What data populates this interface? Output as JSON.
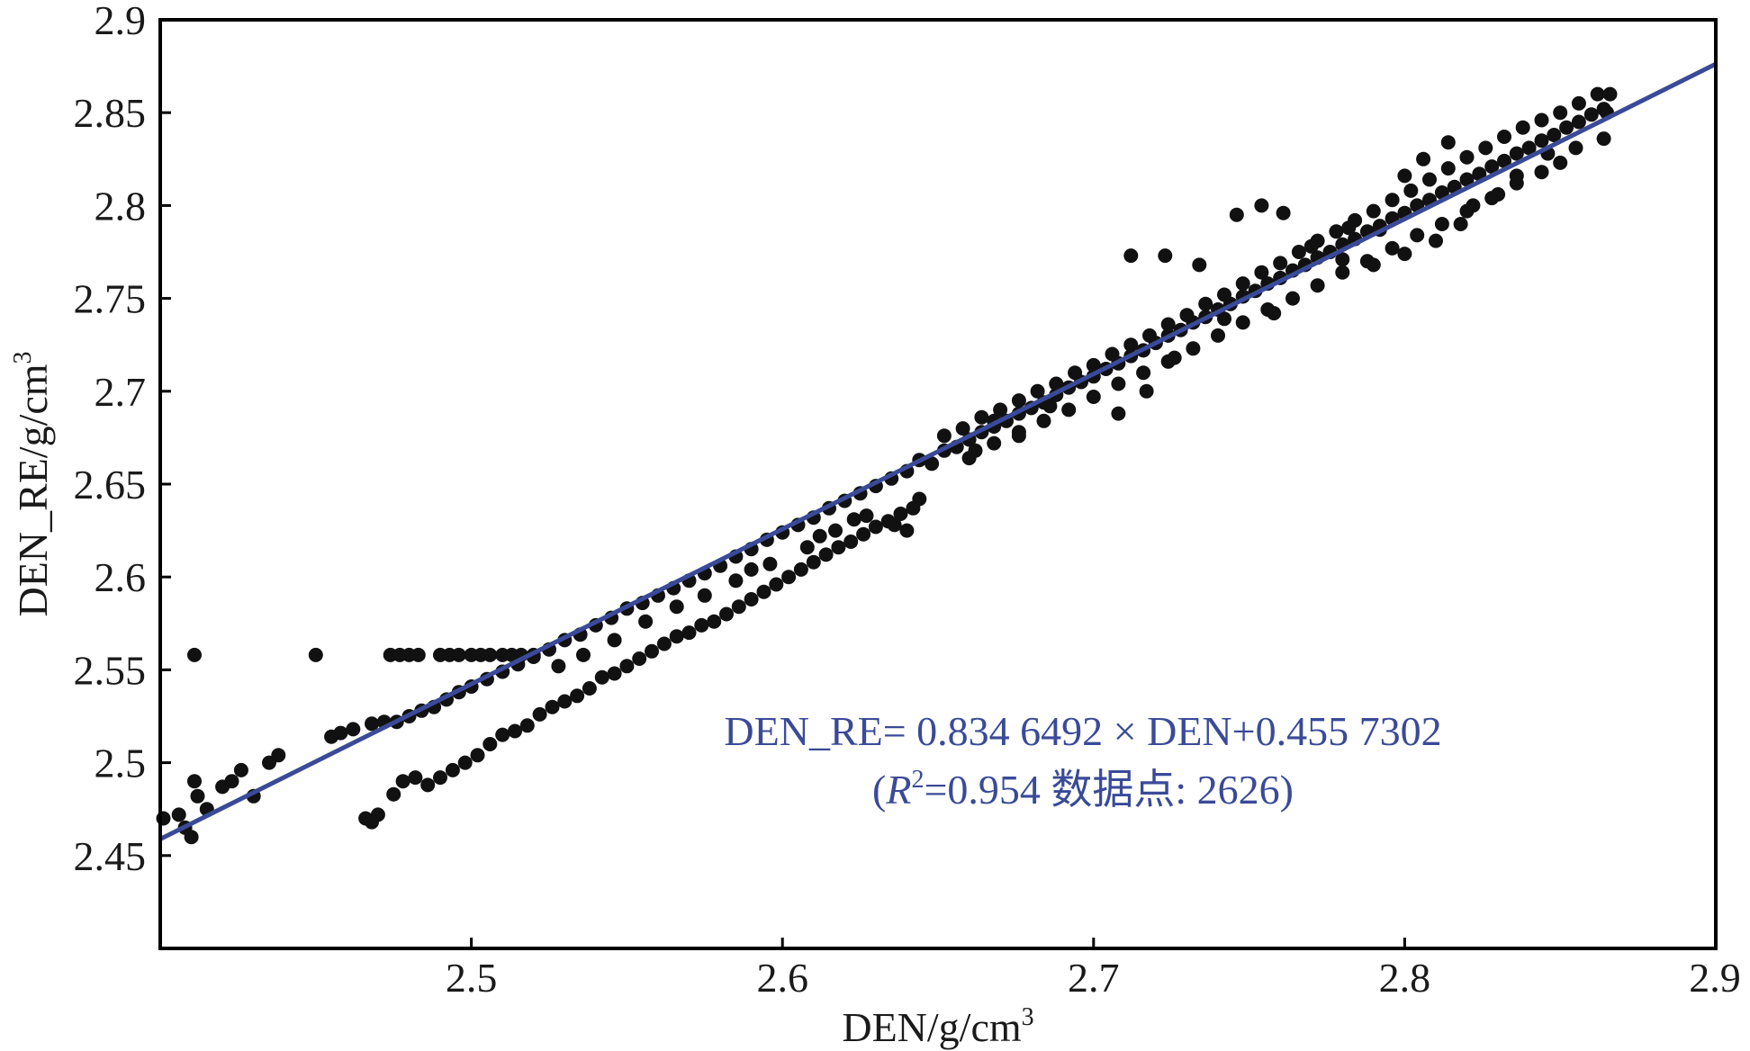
{
  "chart_data": {
    "type": "scatter",
    "xlabel": "DEN/g/cm",
    "xlabel_sup": "3",
    "ylabel": "DEN_RE/g/cm",
    "ylabel_sup": "3",
    "xlim": [
      2.4,
      2.9
    ],
    "ylim": [
      2.4,
      2.9
    ],
    "xticks": [
      2.5,
      2.6,
      2.7,
      2.8,
      2.9
    ],
    "xtick_labels": [
      "2.5",
      "2.6",
      "2.7",
      "2.8",
      "2.9"
    ],
    "yticks": [
      2.45,
      2.5,
      2.55,
      2.6,
      2.65,
      2.7,
      2.75,
      2.8,
      2.85,
      2.9
    ],
    "ytick_labels": [
      "2.45",
      "2.5",
      "2.55",
      "2.6",
      "2.65",
      "2.7",
      "2.75",
      "2.8",
      "2.85",
      "2.9"
    ],
    "grid": false,
    "marker_color": "#111111",
    "fit_line": {
      "slope": 0.8346492,
      "intercept": 0.4557302,
      "color": "#3a4a98"
    },
    "annotation": {
      "equation": "DEN_RE= 0.834 6492 × DEN+0.455 7302",
      "r_open": "(",
      "r_symbol": "R",
      "r_sup": "2",
      "r_rest": "=0.954 数据点: 2626)"
    },
    "series": [
      {
        "points": [
          [
            2.401,
            2.47
          ],
          [
            2.406,
            2.472
          ],
          [
            2.408,
            2.465
          ],
          [
            2.41,
            2.46
          ],
          [
            2.411,
            2.49
          ],
          [
            2.412,
            2.482
          ],
          [
            2.411,
            2.558
          ],
          [
            2.415,
            2.475
          ],
          [
            2.42,
            2.487
          ],
          [
            2.423,
            2.49
          ],
          [
            2.426,
            2.496
          ],
          [
            2.43,
            2.482
          ],
          [
            2.435,
            2.5
          ],
          [
            2.438,
            2.504
          ],
          [
            2.45,
            2.558
          ],
          [
            2.455,
            2.514
          ],
          [
            2.458,
            2.516
          ],
          [
            2.462,
            2.518
          ],
          [
            2.468,
            2.521
          ],
          [
            2.472,
            2.522
          ],
          [
            2.476,
            2.522
          ],
          [
            2.48,
            2.525
          ],
          [
            2.484,
            2.528
          ],
          [
            2.488,
            2.53
          ],
          [
            2.492,
            2.534
          ],
          [
            2.496,
            2.538
          ],
          [
            2.5,
            2.541
          ],
          [
            2.505,
            2.545
          ],
          [
            2.51,
            2.549
          ],
          [
            2.515,
            2.553
          ],
          [
            2.52,
            2.557
          ],
          [
            2.525,
            2.561
          ],
          [
            2.53,
            2.566
          ],
          [
            2.535,
            2.569
          ],
          [
            2.54,
            2.574
          ],
          [
            2.545,
            2.578
          ],
          [
            2.55,
            2.583
          ],
          [
            2.555,
            2.586
          ],
          [
            2.56,
            2.59
          ],
          [
            2.565,
            2.594
          ],
          [
            2.57,
            2.598
          ],
          [
            2.575,
            2.602
          ],
          [
            2.58,
            2.606
          ],
          [
            2.585,
            2.611
          ],
          [
            2.59,
            2.615
          ],
          [
            2.595,
            2.62
          ],
          [
            2.6,
            2.624
          ],
          [
            2.605,
            2.628
          ],
          [
            2.61,
            2.632
          ],
          [
            2.615,
            2.637
          ],
          [
            2.62,
            2.641
          ],
          [
            2.625,
            2.645
          ],
          [
            2.63,
            2.649
          ],
          [
            2.635,
            2.653
          ],
          [
            2.64,
            2.657
          ],
          [
            2.474,
            2.558
          ],
          [
            2.477,
            2.558
          ],
          [
            2.48,
            2.558
          ],
          [
            2.483,
            2.558
          ],
          [
            2.49,
            2.558
          ],
          [
            2.493,
            2.558
          ],
          [
            2.496,
            2.558
          ],
          [
            2.5,
            2.558
          ],
          [
            2.503,
            2.558
          ],
          [
            2.506,
            2.558
          ],
          [
            2.51,
            2.558
          ],
          [
            2.513,
            2.558
          ],
          [
            2.516,
            2.558
          ],
          [
            2.52,
            2.558
          ],
          [
            2.466,
            2.47
          ],
          [
            2.468,
            2.468
          ],
          [
            2.47,
            2.472
          ],
          [
            2.475,
            2.483
          ],
          [
            2.478,
            2.49
          ],
          [
            2.482,
            2.492
          ],
          [
            2.486,
            2.488
          ],
          [
            2.49,
            2.492
          ],
          [
            2.494,
            2.496
          ],
          [
            2.498,
            2.5
          ],
          [
            2.502,
            2.504
          ],
          [
            2.506,
            2.51
          ],
          [
            2.51,
            2.515
          ],
          [
            2.514,
            2.517
          ],
          [
            2.518,
            2.52
          ],
          [
            2.522,
            2.526
          ],
          [
            2.526,
            2.53
          ],
          [
            2.53,
            2.533
          ],
          [
            2.534,
            2.536
          ],
          [
            2.538,
            2.54
          ],
          [
            2.542,
            2.546
          ],
          [
            2.546,
            2.548
          ],
          [
            2.55,
            2.552
          ],
          [
            2.554,
            2.556
          ],
          [
            2.558,
            2.56
          ],
          [
            2.562,
            2.564
          ],
          [
            2.566,
            2.568
          ],
          [
            2.57,
            2.57
          ],
          [
            2.574,
            2.574
          ],
          [
            2.578,
            2.576
          ],
          [
            2.582,
            2.58
          ],
          [
            2.586,
            2.584
          ],
          [
            2.59,
            2.588
          ],
          [
            2.594,
            2.592
          ],
          [
            2.598,
            2.596
          ],
          [
            2.602,
            2.6
          ],
          [
            2.606,
            2.604
          ],
          [
            2.61,
            2.608
          ],
          [
            2.614,
            2.612
          ],
          [
            2.618,
            2.616
          ],
          [
            2.622,
            2.619
          ],
          [
            2.626,
            2.623
          ],
          [
            2.63,
            2.627
          ],
          [
            2.634,
            2.63
          ],
          [
            2.638,
            2.634
          ],
          [
            2.642,
            2.637
          ],
          [
            2.644,
            2.642
          ],
          [
            2.64,
            2.625
          ],
          [
            2.636,
            2.628
          ],
          [
            2.627,
            2.633
          ],
          [
            2.623,
            2.631
          ],
          [
            2.617,
            2.625
          ],
          [
            2.612,
            2.622
          ],
          [
            2.608,
            2.616
          ],
          [
            2.596,
            2.607
          ],
          [
            2.59,
            2.604
          ],
          [
            2.585,
            2.598
          ],
          [
            2.575,
            2.59
          ],
          [
            2.566,
            2.584
          ],
          [
            2.556,
            2.576
          ],
          [
            2.546,
            2.566
          ],
          [
            2.536,
            2.558
          ],
          [
            2.528,
            2.552
          ],
          [
            2.644,
            2.663
          ],
          [
            2.648,
            2.661
          ],
          [
            2.652,
            2.668
          ],
          [
            2.656,
            2.67
          ],
          [
            2.66,
            2.674
          ],
          [
            2.664,
            2.678
          ],
          [
            2.668,
            2.681
          ],
          [
            2.672,
            2.684
          ],
          [
            2.676,
            2.688
          ],
          [
            2.68,
            2.691
          ],
          [
            2.684,
            2.694
          ],
          [
            2.688,
            2.698
          ],
          [
            2.692,
            2.702
          ],
          [
            2.696,
            2.705
          ],
          [
            2.7,
            2.708
          ],
          [
            2.704,
            2.712
          ],
          [
            2.708,
            2.715
          ],
          [
            2.712,
            2.719
          ],
          [
            2.716,
            2.722
          ],
          [
            2.72,
            2.726
          ],
          [
            2.724,
            2.73
          ],
          [
            2.728,
            2.733
          ],
          [
            2.732,
            2.737
          ],
          [
            2.736,
            2.74
          ],
          [
            2.74,
            2.744
          ],
          [
            2.744,
            2.747
          ],
          [
            2.748,
            2.751
          ],
          [
            2.752,
            2.754
          ],
          [
            2.756,
            2.758
          ],
          [
            2.76,
            2.761
          ],
          [
            2.764,
            2.765
          ],
          [
            2.768,
            2.768
          ],
          [
            2.772,
            2.772
          ],
          [
            2.776,
            2.775
          ],
          [
            2.78,
            2.779
          ],
          [
            2.784,
            2.782
          ],
          [
            2.788,
            2.786
          ],
          [
            2.792,
            2.789
          ],
          [
            2.796,
            2.793
          ],
          [
            2.8,
            2.796
          ],
          [
            2.804,
            2.8
          ],
          [
            2.808,
            2.803
          ],
          [
            2.812,
            2.807
          ],
          [
            2.816,
            2.81
          ],
          [
            2.82,
            2.814
          ],
          [
            2.824,
            2.817
          ],
          [
            2.828,
            2.821
          ],
          [
            2.832,
            2.824
          ],
          [
            2.836,
            2.828
          ],
          [
            2.84,
            2.831
          ],
          [
            2.844,
            2.835
          ],
          [
            2.848,
            2.838
          ],
          [
            2.852,
            2.842
          ],
          [
            2.856,
            2.845
          ],
          [
            2.86,
            2.849
          ],
          [
            2.864,
            2.852
          ],
          [
            2.652,
            2.676
          ],
          [
            2.658,
            2.68
          ],
          [
            2.664,
            2.686
          ],
          [
            2.67,
            2.69
          ],
          [
            2.676,
            2.695
          ],
          [
            2.682,
            2.7
          ],
          [
            2.688,
            2.704
          ],
          [
            2.694,
            2.71
          ],
          [
            2.7,
            2.714
          ],
          [
            2.706,
            2.72
          ],
          [
            2.712,
            2.725
          ],
          [
            2.718,
            2.73
          ],
          [
            2.724,
            2.736
          ],
          [
            2.73,
            2.741
          ],
          [
            2.736,
            2.747
          ],
          [
            2.742,
            2.752
          ],
          [
            2.748,
            2.758
          ],
          [
            2.754,
            2.764
          ],
          [
            2.76,
            2.769
          ],
          [
            2.766,
            2.775
          ],
          [
            2.772,
            2.781
          ],
          [
            2.778,
            2.786
          ],
          [
            2.784,
            2.792
          ],
          [
            2.79,
            2.797
          ],
          [
            2.796,
            2.803
          ],
          [
            2.802,
            2.808
          ],
          [
            2.808,
            2.814
          ],
          [
            2.814,
            2.82
          ],
          [
            2.82,
            2.826
          ],
          [
            2.826,
            2.831
          ],
          [
            2.832,
            2.837
          ],
          [
            2.838,
            2.842
          ],
          [
            2.844,
            2.846
          ],
          [
            2.85,
            2.85
          ],
          [
            2.856,
            2.855
          ],
          [
            2.66,
            2.664
          ],
          [
            2.668,
            2.672
          ],
          [
            2.676,
            2.678
          ],
          [
            2.684,
            2.684
          ],
          [
            2.692,
            2.69
          ],
          [
            2.7,
            2.697
          ],
          [
            2.708,
            2.704
          ],
          [
            2.716,
            2.71
          ],
          [
            2.724,
            2.716
          ],
          [
            2.732,
            2.723
          ],
          [
            2.74,
            2.73
          ],
          [
            2.748,
            2.737
          ],
          [
            2.756,
            2.744
          ],
          [
            2.764,
            2.75
          ],
          [
            2.772,
            2.757
          ],
          [
            2.78,
            2.764
          ],
          [
            2.788,
            2.77
          ],
          [
            2.796,
            2.777
          ],
          [
            2.804,
            2.784
          ],
          [
            2.812,
            2.79
          ],
          [
            2.82,
            2.797
          ],
          [
            2.828,
            2.804
          ],
          [
            2.836,
            2.812
          ],
          [
            2.844,
            2.818
          ],
          [
            2.85,
            2.823
          ],
          [
            2.712,
            2.773
          ],
          [
            2.723,
            2.773
          ],
          [
            2.734,
            2.768
          ],
          [
            2.746,
            2.795
          ],
          [
            2.754,
            2.8
          ],
          [
            2.761,
            2.796
          ],
          [
            2.77,
            2.778
          ],
          [
            2.782,
            2.788
          ],
          [
            2.792,
            2.787
          ],
          [
            2.8,
            2.816
          ],
          [
            2.806,
            2.825
          ],
          [
            2.814,
            2.834
          ],
          [
            2.822,
            2.8
          ],
          [
            2.83,
            2.806
          ],
          [
            2.836,
            2.816
          ],
          [
            2.846,
            2.828
          ],
          [
            2.855,
            2.831
          ],
          [
            2.862,
            2.86
          ],
          [
            2.866,
            2.86
          ],
          [
            2.864,
            2.836
          ],
          [
            2.865,
            2.85
          ],
          [
            2.708,
            2.688
          ],
          [
            2.717,
            2.7
          ],
          [
            2.726,
            2.718
          ],
          [
            2.686,
            2.692
          ],
          [
            2.676,
            2.676
          ],
          [
            2.668,
            2.684
          ],
          [
            2.662,
            2.668
          ],
          [
            2.742,
            2.739
          ],
          [
            2.758,
            2.742
          ],
          [
            2.78,
            2.771
          ],
          [
            2.79,
            2.768
          ],
          [
            2.8,
            2.774
          ],
          [
            2.81,
            2.781
          ],
          [
            2.818,
            2.79
          ]
        ]
      }
    ]
  }
}
